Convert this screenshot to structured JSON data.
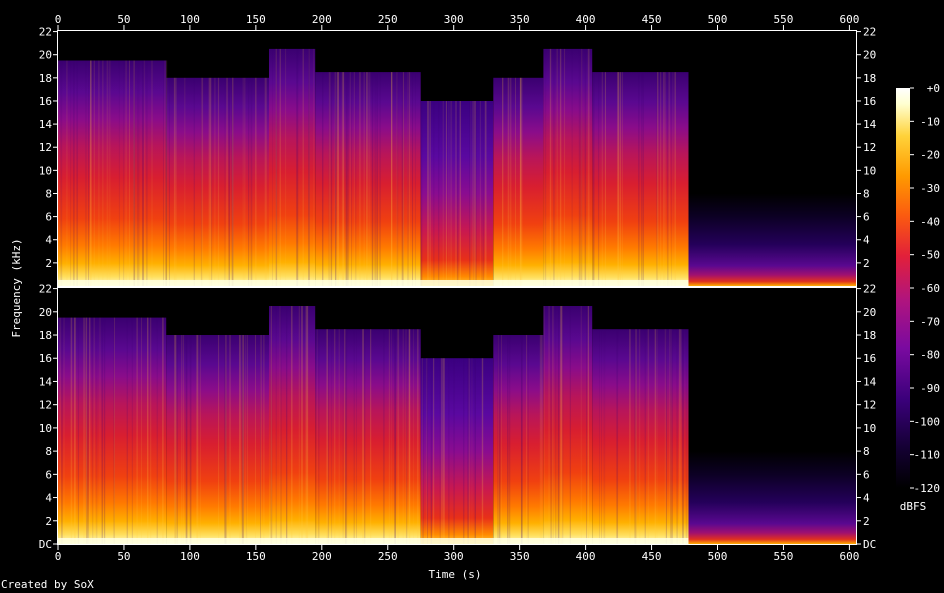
{
  "chart_data": {
    "type": "heatmap",
    "title": "",
    "xlabel": "Time (s)",
    "ylabel": "Frequency (kHz)",
    "xlim": [
      0,
      605
    ],
    "ylim_khz": [
      0,
      22.05
    ],
    "x_ticks": [
      0,
      50,
      100,
      150,
      200,
      250,
      300,
      350,
      400,
      450,
      500,
      550,
      600
    ],
    "y_ticks_top": [
      "2",
      "4",
      "6",
      "8",
      "10",
      "12",
      "14",
      "16",
      "18",
      "20",
      "22"
    ],
    "y_ticks_bottom": [
      "DC",
      "2",
      "4",
      "6",
      "8",
      "10",
      "12",
      "14",
      "16",
      "18",
      "20",
      "22"
    ],
    "channels": [
      "top",
      "bottom"
    ],
    "colorbar": {
      "label": "dBFS",
      "ticks": [
        "+0",
        "-10",
        "-20",
        "-30",
        "-40",
        "-50",
        "-60",
        "-70",
        "-80",
        "-90",
        "-100",
        "-110",
        "-120"
      ],
      "range_db": [
        -120,
        0
      ]
    },
    "segments": [
      {
        "t_start": 0,
        "t_end": 82,
        "cutoff_khz": 19.5,
        "level": "loud"
      },
      {
        "t_start": 82,
        "t_end": 160,
        "cutoff_khz": 18.0,
        "level": "loud"
      },
      {
        "t_start": 160,
        "t_end": 195,
        "cutoff_khz": 20.5,
        "level": "loud"
      },
      {
        "t_start": 195,
        "t_end": 275,
        "cutoff_khz": 18.5,
        "level": "loud"
      },
      {
        "t_start": 275,
        "t_end": 330,
        "cutoff_khz": 16.0,
        "level": "medium"
      },
      {
        "t_start": 330,
        "t_end": 368,
        "cutoff_khz": 18.0,
        "level": "loud"
      },
      {
        "t_start": 368,
        "t_end": 405,
        "cutoff_khz": 20.5,
        "level": "loud"
      },
      {
        "t_start": 405,
        "t_end": 478,
        "cutoff_khz": 18.5,
        "level": "loud"
      },
      {
        "t_start": 478,
        "t_end": 605,
        "cutoff_khz": 8.0,
        "level": "quiet"
      }
    ],
    "colors": [
      "#000000",
      "#140033",
      "#3a007a",
      "#7a0aa0",
      "#b0147e",
      "#e2203a",
      "#fb5a10",
      "#ff9a00",
      "#ffd23a",
      "#ffffd0",
      "#ffffff"
    ]
  },
  "footer": "Created by SoX"
}
